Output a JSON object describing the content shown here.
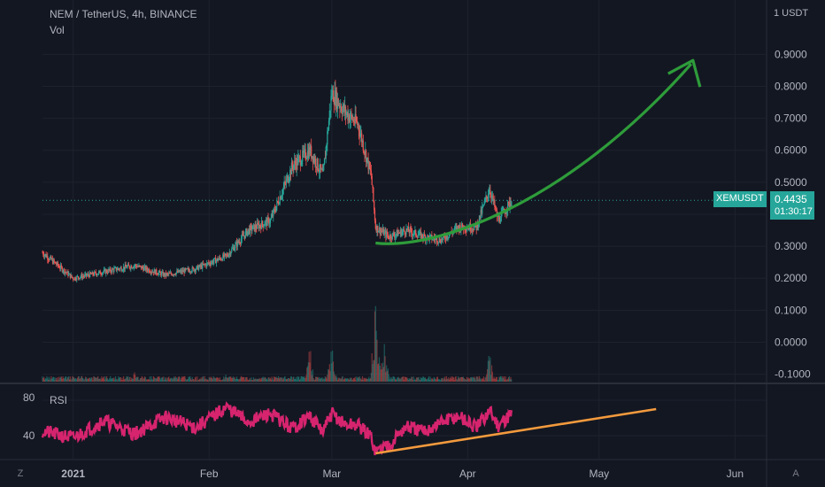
{
  "header": {
    "symbol_title": "NEM / TetherUS, 4h, BINANCE",
    "volume_label": "Vol"
  },
  "rsi_panel": {
    "label": "RSI",
    "ticks": [
      "80",
      "40"
    ]
  },
  "price_axis": {
    "currency": "1 USDT",
    "ticks": [
      "0.9000",
      "0.8000",
      "0.7000",
      "0.6000",
      "0.5000",
      "0.3000",
      "0.2000",
      "0.1000",
      "0.0000",
      "-0.1000"
    ]
  },
  "time_axis": {
    "labels": [
      "2021",
      "Feb",
      "Mar",
      "Apr",
      "May",
      "Jun"
    ]
  },
  "last_price": {
    "symbol": "XEMUSDT",
    "value": "0.4435",
    "countdown": "01:30:17",
    "color": "#26a69a"
  },
  "corner_buttons": {
    "left": "Z",
    "right": "A"
  },
  "chart_data": {
    "type": "line",
    "title": "NEM / TetherUS, 4h, BINANCE",
    "series": [
      {
        "name": "NEM / TetherUS",
        "x": [
          "2020-12-25",
          "2021-01-01",
          "2021-01-08",
          "2021-01-15",
          "2021-01-22",
          "2021-01-29",
          "2021-02-05",
          "2021-02-10",
          "2021-02-15",
          "2021-02-20",
          "2021-02-24",
          "2021-02-27",
          "2021-03-01",
          "2021-03-04",
          "2021-03-07",
          "2021-03-10",
          "2021-03-11",
          "2021-03-14",
          "2021-03-18",
          "2021-03-22",
          "2021-03-26",
          "2021-03-30",
          "2021-04-03",
          "2021-04-06",
          "2021-04-08",
          "2021-04-11"
        ],
        "values": [
          0.28,
          0.2,
          0.22,
          0.24,
          0.21,
          0.23,
          0.27,
          0.35,
          0.38,
          0.55,
          0.6,
          0.52,
          0.78,
          0.72,
          0.68,
          0.52,
          0.36,
          0.33,
          0.35,
          0.33,
          0.32,
          0.36,
          0.36,
          0.48,
          0.38,
          0.4435
        ]
      },
      {
        "name": "RSI",
        "x": [
          "2020-12-25",
          "2021-01-01",
          "2021-01-08",
          "2021-01-15",
          "2021-01-22",
          "2021-01-29",
          "2021-02-05",
          "2021-02-10",
          "2021-02-15",
          "2021-02-20",
          "2021-02-24",
          "2021-02-27",
          "2021-03-01",
          "2021-03-04",
          "2021-03-07",
          "2021-03-10",
          "2021-03-11",
          "2021-03-14",
          "2021-03-18",
          "2021-03-22",
          "2021-03-26",
          "2021-03-30",
          "2021-04-03",
          "2021-04-06",
          "2021-04-08",
          "2021-04-11"
        ],
        "values": [
          45,
          37,
          57,
          42,
          61,
          49,
          72,
          55,
          65,
          48,
          62,
          44,
          65,
          52,
          52,
          38,
          22,
          30,
          50,
          44,
          55,
          62,
          48,
          68,
          52,
          65
        ]
      }
    ],
    "volume": {
      "x": [
        "2020-12-25",
        "2021-01-15",
        "2021-02-05",
        "2021-02-24",
        "2021-03-01",
        "2021-03-11",
        "2021-03-13",
        "2021-04-06"
      ],
      "values": [
        0.05,
        0.1,
        0.08,
        0.35,
        0.4,
        1.0,
        0.45,
        0.28
      ]
    },
    "xlim": [
      "2020-12-25",
      "2021-06-08"
    ],
    "ylim": [
      -0.115,
      1.02
    ],
    "rsi_ylim": [
      14,
      95
    ],
    "last_value": 0.4435,
    "bull_color": "#26a69a",
    "bear_color": "#ef5350",
    "rsi_color": "#d6246f",
    "annotations": [
      {
        "type": "curve-arrow",
        "color": "#2e9c3a"
      },
      {
        "type": "trendline",
        "panel": "rsi",
        "color": "#f39a3d"
      }
    ]
  }
}
